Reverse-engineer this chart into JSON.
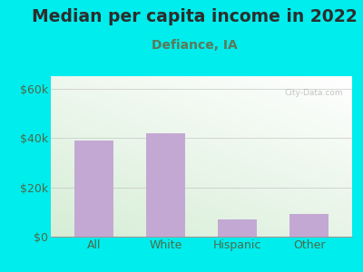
{
  "title": "Median per capita income in 2022",
  "subtitle": "Defiance, IA",
  "categories": [
    "All",
    "White",
    "Hispanic",
    "Other"
  ],
  "values": [
    39000,
    42000,
    7000,
    9000
  ],
  "bar_color": "#c4a8d4",
  "bar_edge_color": "#b898c8",
  "bg_outer": "#00eded",
  "bg_inner_topleft": "#d8eed8",
  "bg_inner_topright": "#f5fff5",
  "bg_inner_bottom": "#e0f5e0",
  "title_color": "#2d2d2d",
  "subtitle_color": "#5a7a5a",
  "tick_label_color": "#4a6a4a",
  "ylim": [
    0,
    65000
  ],
  "yticks": [
    0,
    20000,
    40000,
    60000
  ],
  "ytick_labels": [
    "$0",
    "$20k",
    "$40k",
    "$60k"
  ],
  "watermark": "City-Data.com",
  "title_fontsize": 13.5,
  "subtitle_fontsize": 10,
  "tick_fontsize": 9
}
